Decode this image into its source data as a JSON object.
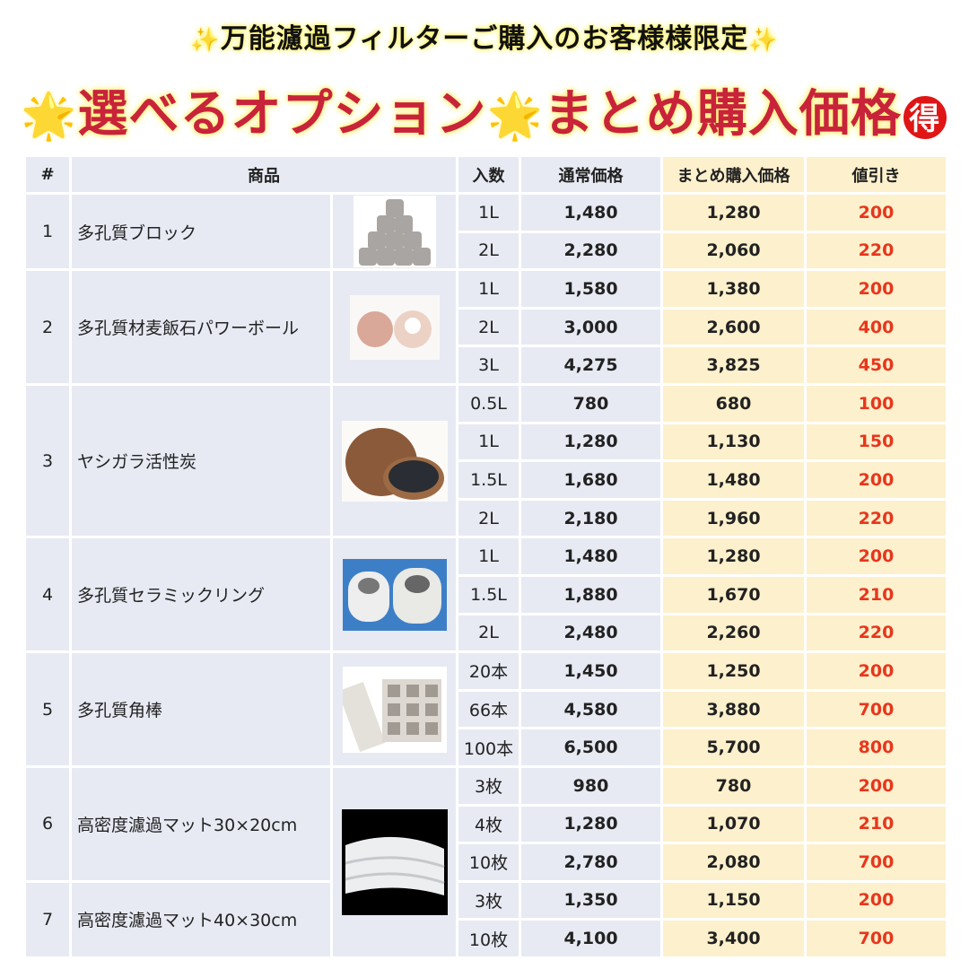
{
  "header": {
    "subtitle": "万能濾過フィルターご購入のお客様様限定",
    "title_part1": "選べるオプション",
    "title_part2": "まとめ購入価格",
    "badge": "得",
    "sparkle": "✨",
    "star": "🌟"
  },
  "colors": {
    "title": "#c8233a",
    "discount": "#e8361c",
    "left_bg": "#e7eaf3",
    "right_bg": "#fdf0cc"
  },
  "table": {
    "columns": [
      "#",
      "商品",
      "入数",
      "通常価格",
      "まとめ購入価格",
      "値引き"
    ],
    "products": [
      {
        "no": "1",
        "name": "多孔質ブロック",
        "image": "porous-block-photo",
        "rows": [
          [
            "1L",
            "1,480",
            "1,280",
            "200"
          ],
          [
            "2L",
            "2,280",
            "2,060",
            "220"
          ]
        ]
      },
      {
        "no": "2",
        "name": "多孔質材麦飯石パワーボール",
        "image": "power-ball-photo",
        "rows": [
          [
            "1L",
            "1,580",
            "1,380",
            "200"
          ],
          [
            "2L",
            "3,000",
            "2,600",
            "400"
          ],
          [
            "3L",
            "4,275",
            "3,825",
            "450"
          ]
        ]
      },
      {
        "no": "3",
        "name": "ヤシガラ活性炭",
        "image": "coconut-charcoal-photo",
        "rows": [
          [
            "0.5L",
            "780",
            "680",
            "100"
          ],
          [
            "1L",
            "1,280",
            "1,130",
            "150"
          ],
          [
            "1.5L",
            "1,680",
            "1,480",
            "200"
          ],
          [
            "2L",
            "2,180",
            "1,960",
            "220"
          ]
        ]
      },
      {
        "no": "4",
        "name": "多孔質セラミックリング",
        "image": "ceramic-ring-photo",
        "rows": [
          [
            "1L",
            "1,480",
            "1,280",
            "200"
          ],
          [
            "1.5L",
            "1,880",
            "1,670",
            "210"
          ],
          [
            "2L",
            "2,480",
            "2,260",
            "220"
          ]
        ]
      },
      {
        "no": "5",
        "name": "多孔質角棒",
        "image": "square-bar-photo",
        "rows": [
          [
            "20本",
            "1,450",
            "1,250",
            "200"
          ],
          [
            "66本",
            "4,580",
            "3,880",
            "700"
          ],
          [
            "100本",
            "6,500",
            "5,700",
            "800"
          ]
        ]
      },
      {
        "no": "6",
        "name": "高密度濾過マット30×20cm",
        "image": "filter-mat-photo",
        "rows": [
          [
            "3枚",
            "980",
            "780",
            "200"
          ],
          [
            "4枚",
            "1,280",
            "1,070",
            "210"
          ],
          [
            "10枚",
            "2,780",
            "2,080",
            "700"
          ]
        ]
      },
      {
        "no": "7",
        "name": "高密度濾過マット40×30cm",
        "image": "filter-mat-photo",
        "rows": [
          [
            "3枚",
            "1,350",
            "1,150",
            "200"
          ],
          [
            "10枚",
            "4,100",
            "3,400",
            "700"
          ]
        ]
      }
    ]
  }
}
